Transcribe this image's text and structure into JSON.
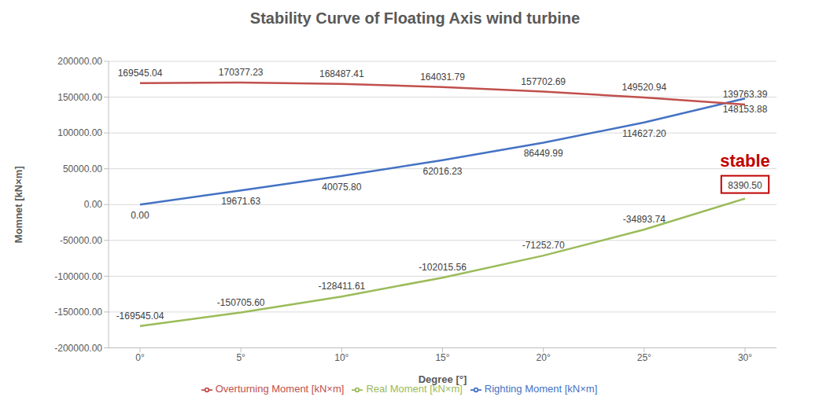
{
  "chart_data": {
    "type": "line",
    "title": "Stability Curve of Floating Axis wind turbine",
    "x_label": "Degree [°]",
    "y_label": "Momnet [kN×m]",
    "categories": [
      "0°",
      "5°",
      "10°",
      "15°",
      "20°",
      "25°",
      "30°"
    ],
    "series": [
      {
        "name": "Righting Moment [kN×m]",
        "color": "#4472c4",
        "marker": "none",
        "values": [
          0,
          19671.63,
          40075.8,
          62016.23,
          86449.99,
          114627.2,
          148153.88
        ],
        "value_labels": [
          "0.00",
          "19671.63",
          "40075.80",
          "62016.23",
          "86449.99",
          "114627.20",
          "148153.88"
        ]
      },
      {
        "name": "Overturning Moment [kN×m]",
        "color": "#c0504d",
        "marker": "none",
        "values": [
          169545.04,
          170377.23,
          168487.41,
          164031.79,
          157702.69,
          149520.94,
          139763.39
        ],
        "value_labels": [
          "169545.04",
          "170377.23",
          "168487.41",
          "164031.79",
          "157702.69",
          "149520.94",
          "139763.39"
        ]
      },
      {
        "name": "Real Moment [kN×m]",
        "color": "#9bbb59",
        "marker": "none",
        "values": [
          -169545.04,
          -150705.6,
          -128411.61,
          -102015.56,
          -71252.7,
          -34893.74,
          8390.5
        ],
        "value_labels": [
          "-169545.04",
          "-150705.60",
          "-128411.61",
          "-102015.56",
          "-71252.70",
          "-34893.74",
          "8390.50"
        ]
      }
    ],
    "ylim": [
      -200000,
      200000
    ],
    "yticks": [
      {
        "value": -200000,
        "label": "-200000.00"
      },
      {
        "value": -150000,
        "label": "-150000.00"
      },
      {
        "value": -100000,
        "label": "-100000.00"
      },
      {
        "value": -50000,
        "label": "-50000.00"
      },
      {
        "value": 0,
        "label": "0.00"
      },
      {
        "value": 50000,
        "label": "50000.00"
      },
      {
        "value": 100000,
        "label": "100000.00"
      },
      {
        "value": 150000,
        "label": "150000.00"
      },
      {
        "value": 200000,
        "label": "200000.00"
      }
    ],
    "grid": true,
    "legend": "bottom",
    "data_labels": true,
    "annotations": [
      {
        "text": "stable",
        "category": "30°",
        "series": "Real Moment [kN×m]",
        "color": "#c00000"
      }
    ]
  }
}
